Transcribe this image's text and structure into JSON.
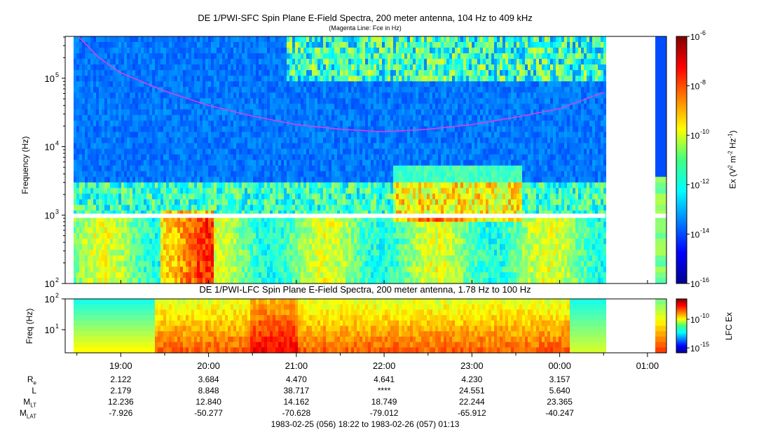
{
  "titles": {
    "top": "DE 1/PWI-SFC  Spin Plane E-Field Spectra, 200 meter antenna, 104 Hz to 409 kHz",
    "top_sub": "(Magenta Line: Fce in Hz)",
    "bottom": "DE 1/PWI-LFC  Spin Plane E-Field Spectra, 200 meter antenna, 1.78 Hz to 100 Hz"
  },
  "chart_data": [
    {
      "type": "heatmap",
      "panel": "sfc",
      "ylabel": "Frequency (Hz)",
      "yscale": "log",
      "ylim": [
        100,
        409000
      ],
      "yticks": [
        {
          "label": "10",
          "exp": "2"
        },
        {
          "label": "10",
          "exp": "3"
        },
        {
          "label": "10",
          "exp": "4"
        },
        {
          "label": "10",
          "exp": "5"
        }
      ],
      "x_time_range": [
        "18:22",
        "01:13"
      ],
      "data_gaps": [
        [
          "00:30",
          "01:05"
        ]
      ],
      "overlay": {
        "name": "Fce",
        "color": "#e040e0",
        "points": [
          {
            "t": "18:31",
            "f": 409000
          },
          {
            "t": "18:45",
            "f": 200000
          },
          {
            "t": "19:00",
            "f": 120000
          },
          {
            "t": "19:30",
            "f": 65000
          },
          {
            "t": "20:00",
            "f": 40000
          },
          {
            "t": "20:30",
            "f": 28000
          },
          {
            "t": "21:00",
            "f": 21000
          },
          {
            "t": "21:30",
            "f": 18000
          },
          {
            "t": "22:00",
            "f": 16500
          },
          {
            "t": "22:30",
            "f": 18000
          },
          {
            "t": "23:00",
            "f": 21000
          },
          {
            "t": "23:30",
            "f": 27000
          },
          {
            "t": "00:00",
            "f": 36000
          },
          {
            "t": "00:30",
            "f": 62000
          }
        ]
      },
      "colorbar": {
        "label": "Ex (V",
        "label_sup1": "2",
        "label_mid": " m",
        "label_sup2": "-2",
        "label_mid2": " Hz",
        "label_sup3": "-1",
        "label_end": ")",
        "ticks": [
          {
            "label": "10",
            "exp": "-6"
          },
          {
            "label": "10",
            "exp": "-8"
          },
          {
            "label": "10",
            "exp": "-10"
          },
          {
            "label": "10",
            "exp": "-12"
          },
          {
            "label": "10",
            "exp": "-14"
          },
          {
            "label": "10",
            "exp": "-16"
          }
        ],
        "range": [
          1e-16,
          1e-06
        ]
      }
    },
    {
      "type": "heatmap",
      "panel": "lfc",
      "ylabel": "Freq (Hz)",
      "yscale": "log",
      "ylim": [
        1.78,
        100
      ],
      "yticks": [
        {
          "label": "10",
          "exp": "1"
        },
        {
          "label": "10",
          "exp": "2"
        }
      ],
      "x_time_range": [
        "18:22",
        "01:13"
      ],
      "colorbar": {
        "label": "LFC Ex",
        "ticks": [
          {
            "label": "10",
            "exp": "-10"
          },
          {
            "label": "10",
            "exp": "-15"
          }
        ]
      }
    }
  ],
  "xaxis": {
    "ticks": [
      "19:00",
      "20:00",
      "21:00",
      "22:00",
      "23:00",
      "00:00",
      "01:00"
    ]
  },
  "ephemeris": {
    "rows": [
      {
        "label": "R",
        "sub": "e",
        "values": [
          "2.122",
          "3.684",
          "4.470",
          "4.641",
          "4.230",
          "3.157"
        ]
      },
      {
        "label": "L",
        "sub": "",
        "values": [
          "2.179",
          "8.848",
          "38.717",
          "****",
          "24.551",
          "5.640"
        ]
      },
      {
        "label": "M",
        "sub": "LT",
        "values": [
          "12.236",
          "12.840",
          "14.162",
          "18.749",
          "22.244",
          "23.365"
        ]
      },
      {
        "label": "M",
        "sub": "LAT",
        "values": [
          "-7.926",
          "-50.277",
          "-70.628",
          "-79.012",
          "-65.912",
          "-40.247"
        ]
      }
    ]
  },
  "footer": "1983-02-25 (056) 18:22 to 1983-02-26 (057) 01:13"
}
